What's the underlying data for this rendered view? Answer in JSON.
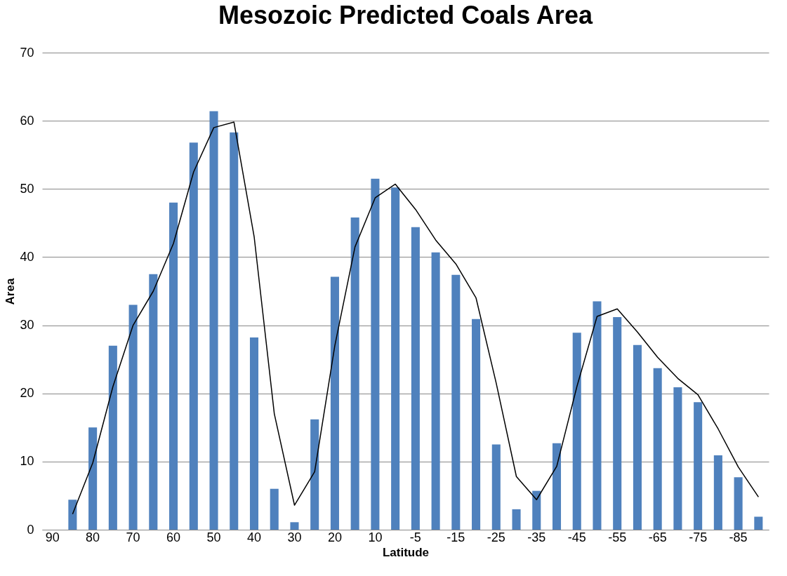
{
  "chart_data": {
    "type": "bar",
    "title": "Mesozoic Predicted Coals Area",
    "xlabel": "Latitude",
    "ylabel": "Area",
    "categories": [
      "90",
      null,
      "80",
      null,
      "70",
      null,
      "60",
      null,
      "50",
      null,
      "40",
      null,
      "30",
      null,
      "20",
      null,
      "10",
      null,
      "-5",
      null,
      "-15",
      null,
      "-25",
      null,
      "-35",
      null,
      "-45",
      null,
      "-55",
      null,
      "-65",
      null,
      "-75",
      null,
      "-85",
      null
    ],
    "series": [
      {
        "color": "#4f81bd",
        "values": [
          null,
          4.4,
          15,
          27,
          33,
          37.5,
          48,
          56.8,
          61.4,
          58.3,
          28.2,
          6,
          1.1,
          16.2,
          37.1,
          45.8,
          51.5,
          50.2,
          44.4,
          40.7,
          37.4,
          30.9,
          12.5,
          3,
          5.7,
          12.7,
          28.9,
          33.5,
          31.2,
          27.1,
          23.7,
          20.9,
          18.7,
          10.9,
          7.7,
          1.9
        ]
      },
      {
        "type": "line",
        "color": "#000000",
        "values": [
          null,
          2.3,
          9.8,
          21,
          30,
          35,
          42,
          52.5,
          59,
          59.8,
          43,
          17,
          3.6,
          8.5,
          27,
          41.5,
          48.7,
          50.7,
          47,
          42.5,
          39,
          34,
          21.5,
          7.8,
          4.4,
          9.3,
          21,
          31.3,
          32.4,
          29,
          25.3,
          22.2,
          19.8,
          14.8,
          9.2,
          4.8
        ]
      }
    ],
    "ylim": [
      0,
      70
    ],
    "yticks": [
      0,
      10,
      20,
      30,
      40,
      50,
      60,
      70
    ],
    "grid": "y"
  }
}
